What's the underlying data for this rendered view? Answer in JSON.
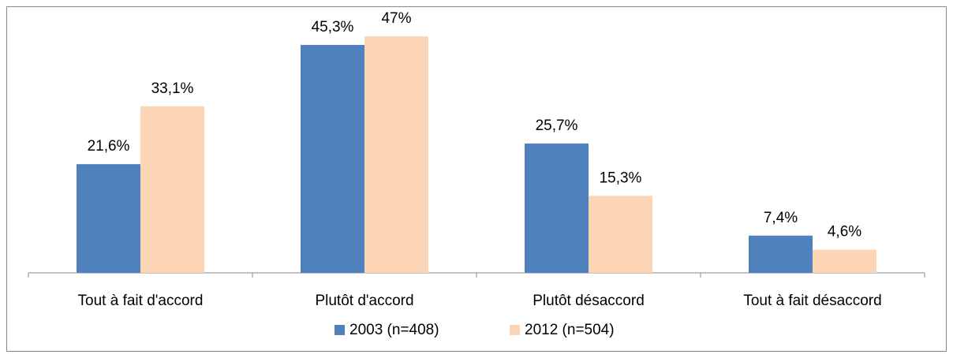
{
  "chart_data": {
    "type": "bar",
    "categories": [
      "Tout à fait d'accord",
      "Plutôt d'accord",
      "Plutôt désaccord",
      "Tout à fait désaccord"
    ],
    "series": [
      {
        "name": "2003 (n=408)",
        "color": "#4f81bd",
        "values": [
          21.6,
          45.3,
          25.7,
          7.4
        ],
        "value_labels": [
          "21,6%",
          "45,3%",
          "25,7%",
          "7,4%"
        ]
      },
      {
        "name": "2012 (n=504)",
        "color": "#fbd5b5",
        "values": [
          33.1,
          47,
          15.3,
          4.6
        ],
        "value_labels": [
          "33,1%",
          "47%",
          "15,3%",
          "4,6%"
        ]
      }
    ],
    "legend": "bottom"
  }
}
